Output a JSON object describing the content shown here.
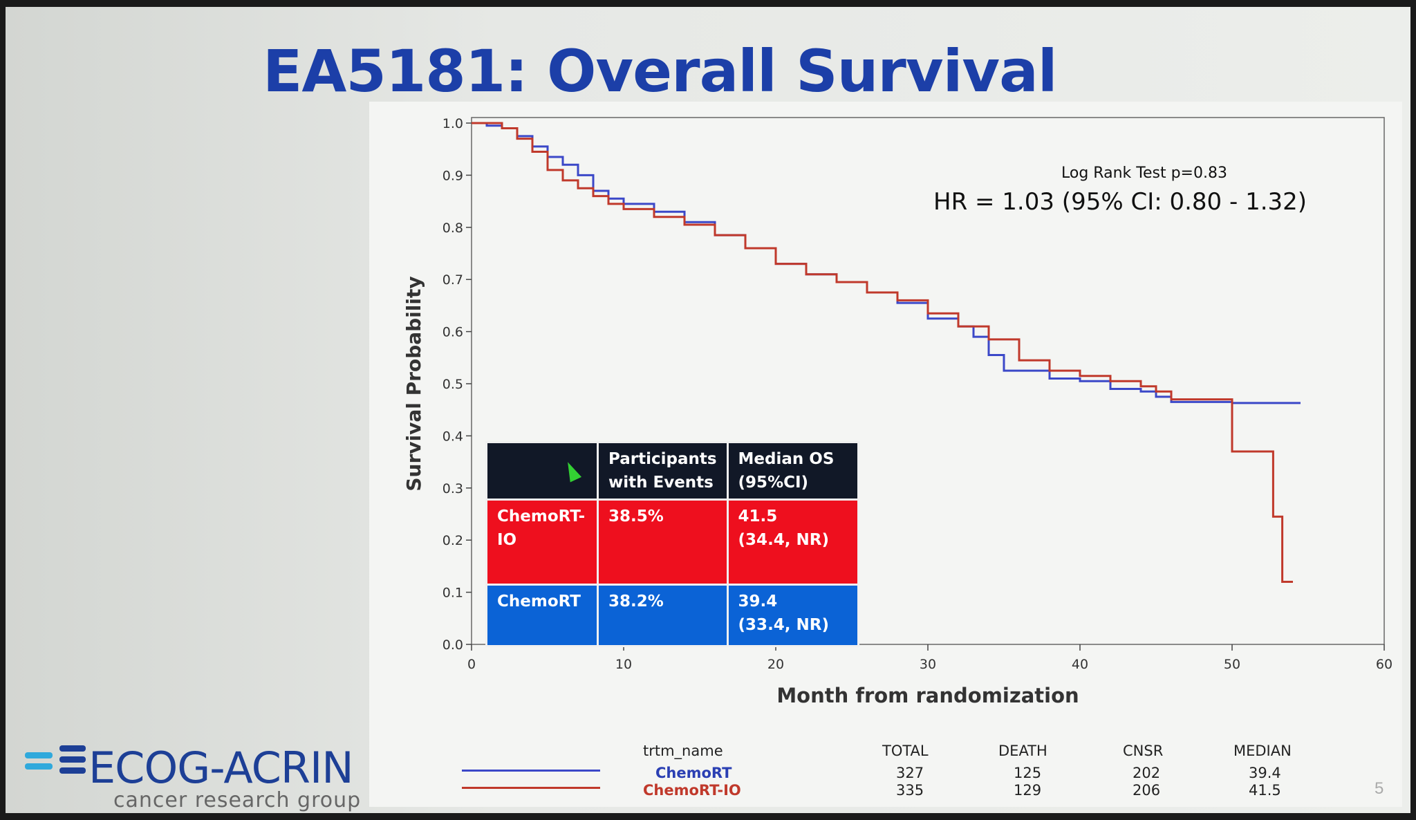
{
  "slide": {
    "title": "EA5181: Overall Survival",
    "page_number": "5"
  },
  "stats": {
    "log_rank": "Log Rank Test p=0.83",
    "hr": "HR = 1.03 (95% CI: 0.80 - 1.32)"
  },
  "inset_table": {
    "headers": [
      "",
      "Participants with Events",
      "Median OS (95%CI)"
    ],
    "rows": [
      {
        "arm": "ChemoRT-IO",
        "events": "38.5%",
        "median": "41.5",
        "ci": "(34.4, NR)",
        "color": "#ee0f1e"
      },
      {
        "arm": "ChemoRT",
        "events": "38.2%",
        "median": "39.4",
        "ci": "(33.4, NR)",
        "color": "#0b63d6"
      }
    ]
  },
  "summary_table": {
    "headers": [
      "trtm_name",
      "TOTAL",
      "DEATH",
      "CNSR",
      "MEDIAN"
    ],
    "rows": [
      {
        "name": "ChemoRT",
        "total": "327",
        "death": "125",
        "cnsr": "202",
        "median": "39.4",
        "color": "#2a3fb3"
      },
      {
        "name": "ChemoRT-IO",
        "total": "335",
        "death": "129",
        "cnsr": "206",
        "median": "41.5",
        "color": "#c0392b"
      }
    ]
  },
  "logo": {
    "name": "ECOG-ACRIN",
    "tagline": "cancer research group"
  },
  "chart_data": {
    "type": "line",
    "xlabel": "Month from randomization",
    "ylabel": "Survival Probability",
    "xlim": [
      0,
      60
    ],
    "ylim": [
      0,
      1
    ],
    "xticks": [
      0,
      10,
      20,
      30,
      40,
      50,
      60
    ],
    "yticks": [
      0.0,
      0.1,
      0.2,
      0.3,
      0.4,
      0.5,
      0.6,
      0.7,
      0.8,
      0.9,
      1.0
    ],
    "series": [
      {
        "name": "ChemoRT",
        "color": "#3b48c8",
        "points": [
          [
            0,
            1.0
          ],
          [
            1,
            0.995
          ],
          [
            2,
            0.99
          ],
          [
            3,
            0.975
          ],
          [
            4,
            0.955
          ],
          [
            5,
            0.935
          ],
          [
            6,
            0.92
          ],
          [
            7,
            0.9
          ],
          [
            8,
            0.87
          ],
          [
            9,
            0.855
          ],
          [
            10,
            0.845
          ],
          [
            12,
            0.83
          ],
          [
            14,
            0.81
          ],
          [
            16,
            0.785
          ],
          [
            18,
            0.76
          ],
          [
            20,
            0.73
          ],
          [
            22,
            0.71
          ],
          [
            24,
            0.695
          ],
          [
            26,
            0.675
          ],
          [
            28,
            0.655
          ],
          [
            30,
            0.625
          ],
          [
            32,
            0.61
          ],
          [
            33,
            0.59
          ],
          [
            34,
            0.555
          ],
          [
            35,
            0.525
          ],
          [
            38,
            0.51
          ],
          [
            40,
            0.505
          ],
          [
            42,
            0.49
          ],
          [
            44,
            0.485
          ],
          [
            45,
            0.475
          ],
          [
            46,
            0.465
          ],
          [
            50,
            0.463
          ],
          [
            54.5,
            0.463
          ]
        ]
      },
      {
        "name": "ChemoRT-IO",
        "color": "#c0392b",
        "points": [
          [
            0,
            1.0
          ],
          [
            2,
            0.99
          ],
          [
            3,
            0.97
          ],
          [
            4,
            0.945
          ],
          [
            5,
            0.91
          ],
          [
            6,
            0.89
          ],
          [
            7,
            0.875
          ],
          [
            8,
            0.86
          ],
          [
            9,
            0.845
          ],
          [
            10,
            0.835
          ],
          [
            12,
            0.82
          ],
          [
            14,
            0.805
          ],
          [
            16,
            0.785
          ],
          [
            18,
            0.76
          ],
          [
            20,
            0.73
          ],
          [
            22,
            0.71
          ],
          [
            24,
            0.695
          ],
          [
            26,
            0.675
          ],
          [
            28,
            0.66
          ],
          [
            30,
            0.635
          ],
          [
            32,
            0.61
          ],
          [
            34,
            0.585
          ],
          [
            36,
            0.545
          ],
          [
            38,
            0.525
          ],
          [
            40,
            0.515
          ],
          [
            42,
            0.505
          ],
          [
            44,
            0.495
          ],
          [
            45,
            0.485
          ],
          [
            46,
            0.47
          ],
          [
            50,
            0.466
          ],
          [
            50,
            0.37
          ],
          [
            52.7,
            0.37
          ],
          [
            52.7,
            0.245
          ],
          [
            53.3,
            0.245
          ],
          [
            53.3,
            0.12
          ],
          [
            54,
            0.12
          ]
        ]
      }
    ]
  }
}
